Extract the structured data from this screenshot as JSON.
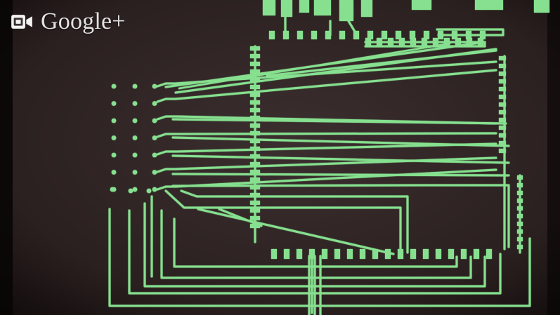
{
  "overlay": {
    "brand": "Google+",
    "icon": "video-camera-icon"
  },
  "video": {
    "content": "pcb-layout-traces",
    "trace_color": "#86e08f",
    "background_color": "#2a1f1f"
  }
}
